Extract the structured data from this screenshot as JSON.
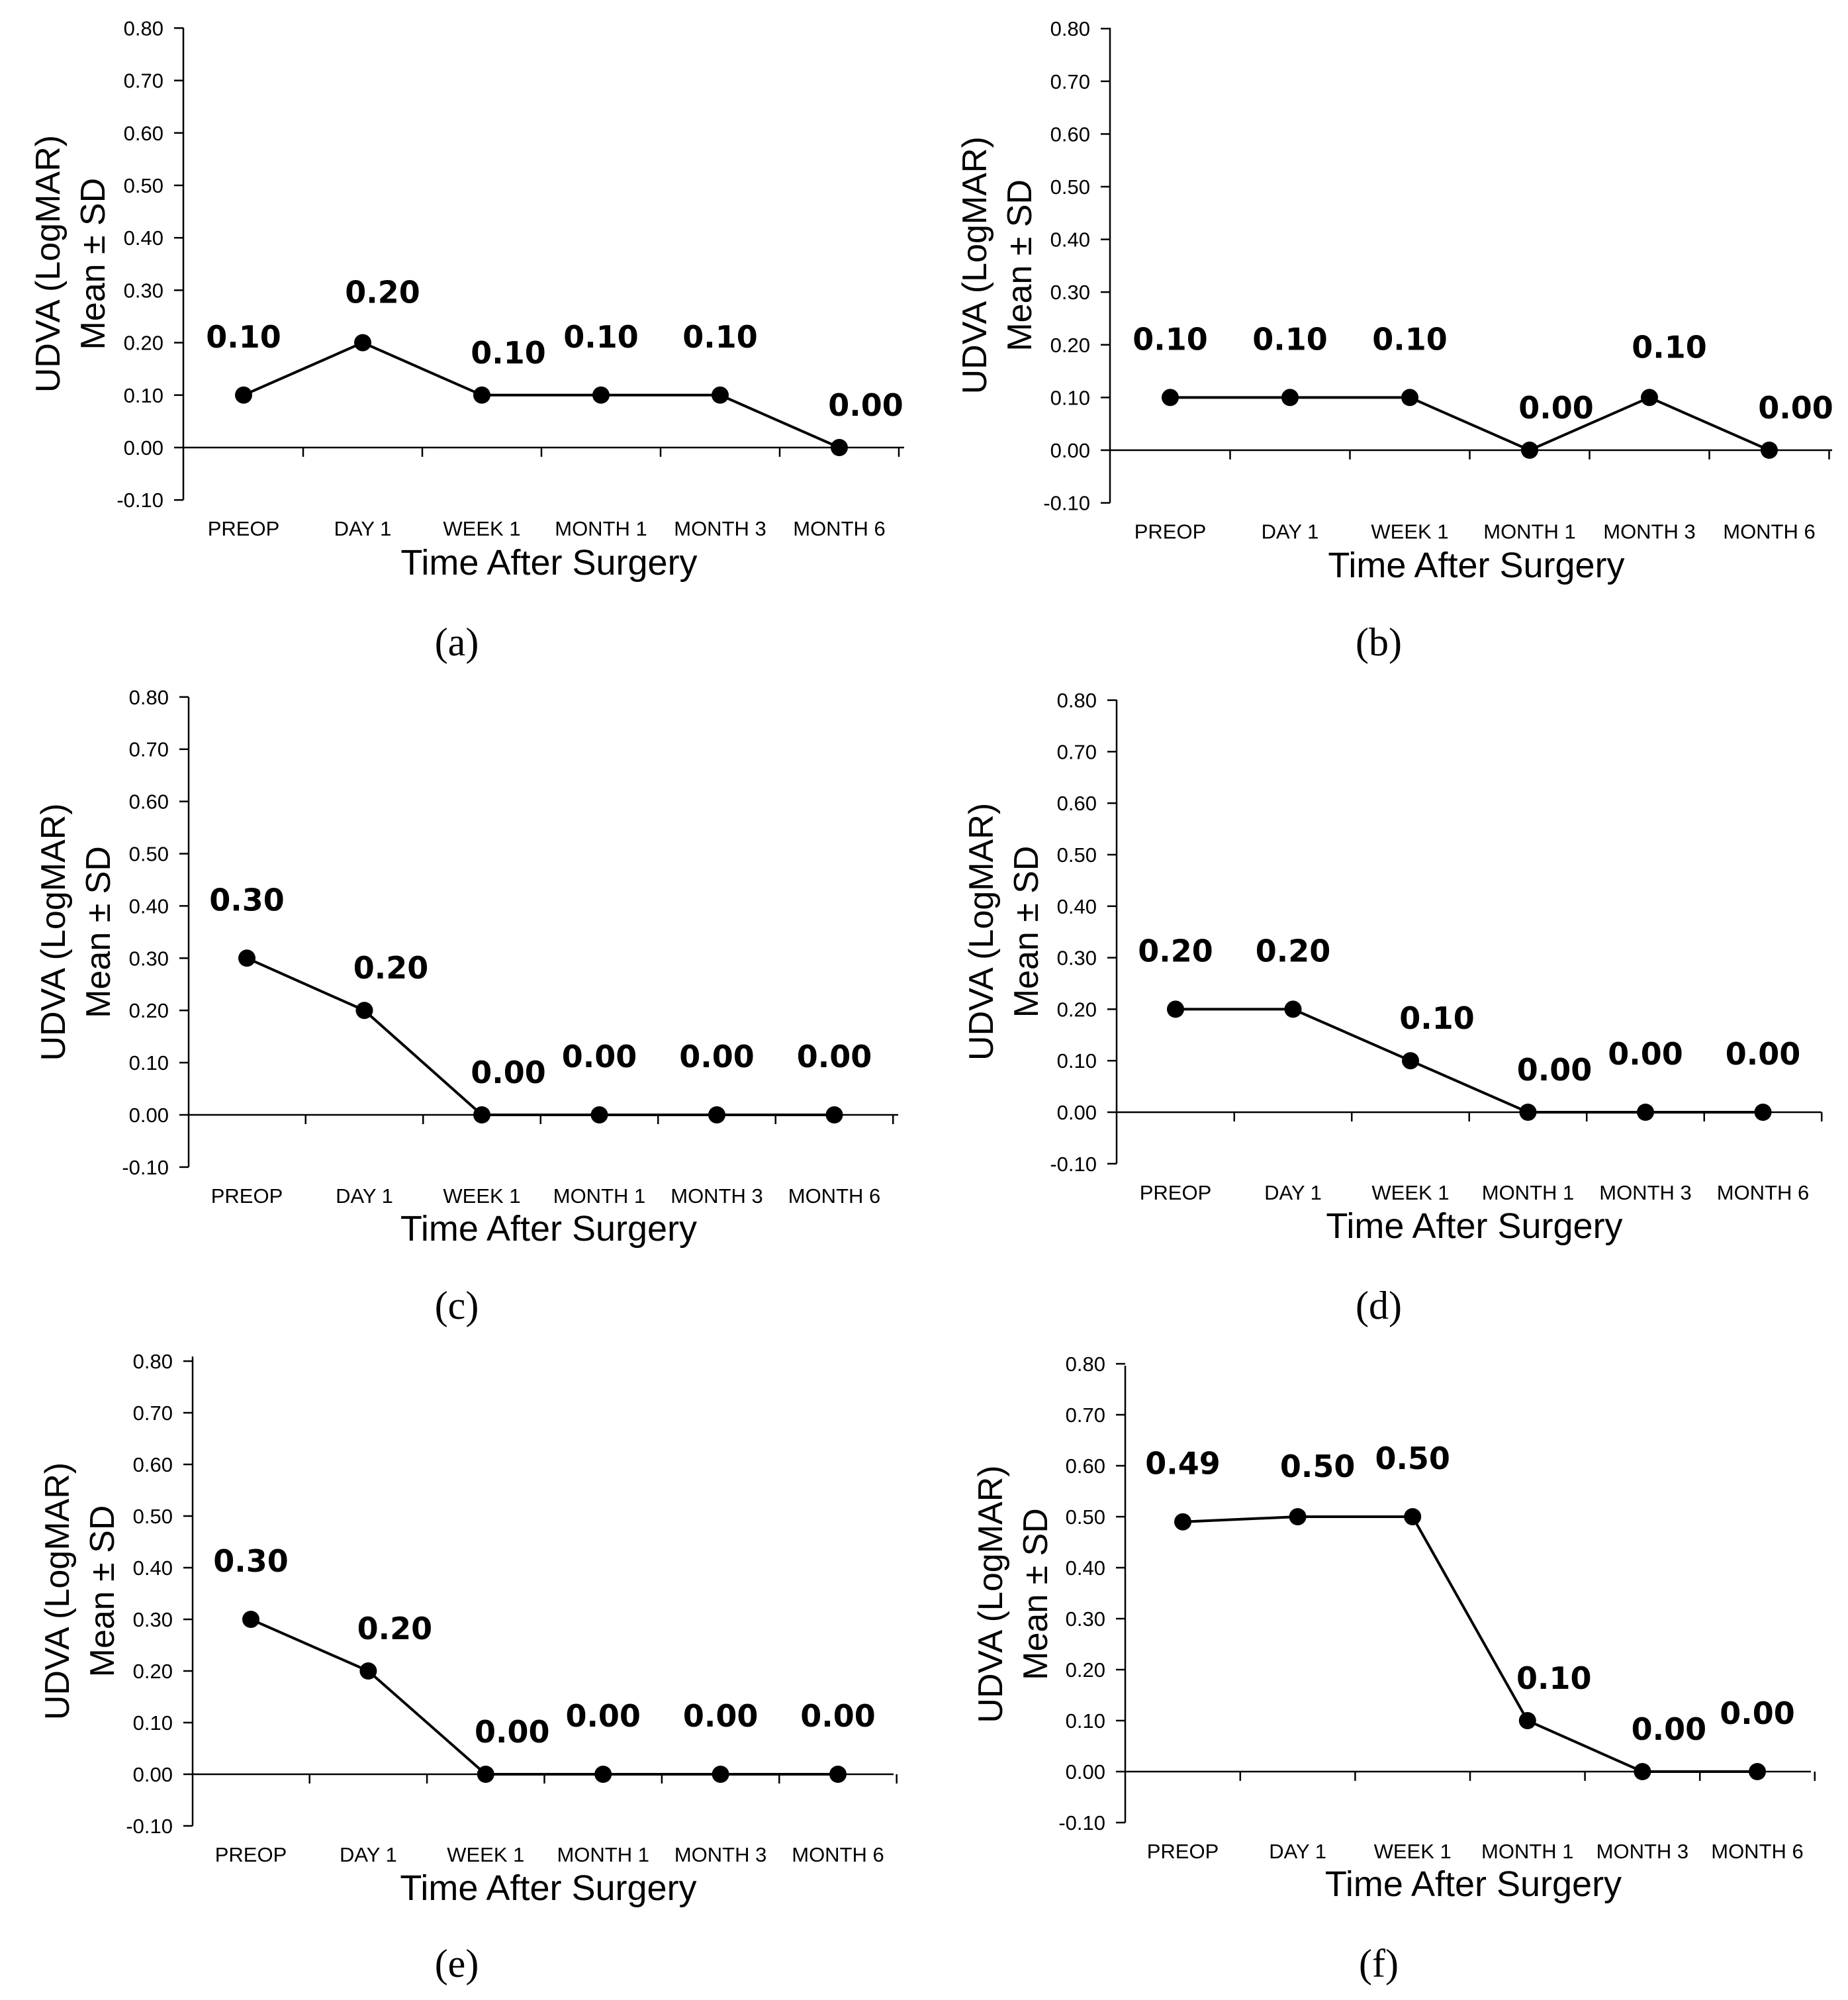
{
  "chart_data": [
    {
      "panel": "a",
      "type": "line",
      "categories": [
        "PREOP",
        "DAY 1",
        "WEEK 1",
        "MONTH 1",
        "MONTH 3",
        "MONTH 6"
      ],
      "values": [
        0.1,
        0.2,
        0.1,
        0.1,
        0.1,
        0.0
      ],
      "data_labels": [
        "0.10",
        "0.20",
        "0.10",
        "0.10",
        "0.10",
        "0.00"
      ],
      "xlabel": "Time After Surgery",
      "ylabel": [
        "UDVA (LogMAR)",
        "Mean ± SD"
      ],
      "ylim": [
        -0.1,
        0.8
      ],
      "yticks": [
        "0.80",
        "0.70",
        "0.60",
        "0.50",
        "0.40",
        "0.30",
        "0.20",
        "0.10",
        "0.00",
        "-0.10"
      ],
      "grid": false
    },
    {
      "panel": "b",
      "type": "line",
      "categories": [
        "PREOP",
        "DAY 1",
        "WEEK 1",
        "MONTH 1",
        "MONTH 3",
        "MONTH 6"
      ],
      "values": [
        0.1,
        0.1,
        0.1,
        0.0,
        0.1,
        0.0
      ],
      "data_labels": [
        "0.10",
        "0.10",
        "0.10",
        "0.00",
        "0.10",
        "0.00"
      ],
      "xlabel": "Time After Surgery",
      "ylabel": [
        "UDVA (LogMAR)",
        "Mean ± SD"
      ],
      "ylim": [
        -0.1,
        0.8
      ],
      "yticks": [
        "0.80",
        "0.70",
        "0.60",
        "0.50",
        "0.40",
        "0.30",
        "0.20",
        "0.10",
        "0.00",
        "-0.10"
      ],
      "grid": false
    },
    {
      "panel": "c",
      "type": "line",
      "categories": [
        "PREOP",
        "DAY 1",
        "WEEK 1",
        "MONTH 1",
        "MONTH 3",
        "MONTH 6"
      ],
      "values": [
        0.3,
        0.2,
        0.0,
        0.0,
        0.0,
        0.0
      ],
      "data_labels": [
        "0.30",
        "0.20",
        "0.00",
        "0.00",
        "0.00",
        "0.00"
      ],
      "xlabel": "Time After Surgery",
      "ylabel": [
        "UDVA (LogMAR)",
        "Mean ± SD"
      ],
      "ylim": [
        -0.1,
        0.8
      ],
      "yticks": [
        "0.80",
        "0.70",
        "0.60",
        "0.50",
        "0.40",
        "0.30",
        "0.20",
        "0.10",
        "0.00",
        "-0.10"
      ],
      "grid": false
    },
    {
      "panel": "d",
      "type": "line",
      "categories": [
        "PREOP",
        "DAY 1",
        "WEEK 1",
        "MONTH 1",
        "MONTH 3",
        "MONTH 6"
      ],
      "values": [
        0.2,
        0.2,
        0.1,
        0.0,
        0.0,
        0.0
      ],
      "data_labels": [
        "0.20",
        "0.20",
        "0.10",
        "0.00",
        "0.00",
        "0.00"
      ],
      "xlabel": "Time After Surgery",
      "ylabel": [
        "UDVA (LogMAR)",
        "Mean ± SD"
      ],
      "ylim": [
        -0.1,
        0.8
      ],
      "yticks": [
        "0.80",
        "0.70",
        "0.60",
        "0.50",
        "0.40",
        "0.30",
        "0.20",
        "0.10",
        "0.00",
        "-0.10"
      ],
      "grid": false
    },
    {
      "panel": "e",
      "type": "line",
      "categories": [
        "PREOP",
        "DAY 1",
        "WEEK 1",
        "MONTH 1",
        "MONTH 3",
        "MONTH 6"
      ],
      "values": [
        0.3,
        0.2,
        0.0,
        0.0,
        0.0,
        0.0
      ],
      "data_labels": [
        "0.30",
        "0.20",
        "0.00",
        "0.00",
        "0.00",
        "0.00"
      ],
      "xlabel": "Time After Surgery",
      "ylabel": [
        "UDVA (LogMAR)",
        "Mean ± SD"
      ],
      "ylim": [
        -0.1,
        0.8
      ],
      "yticks": [
        "0.80",
        "0.70",
        "0.60",
        "0.50",
        "0.40",
        "0.30",
        "0.20",
        "0.10",
        "0.00",
        "-0.10"
      ],
      "grid": false
    },
    {
      "panel": "f",
      "type": "line",
      "categories": [
        "PREOP",
        "DAY 1",
        "WEEK 1",
        "MONTH 1",
        "MONTH 3",
        "MONTH 6"
      ],
      "values": [
        0.49,
        0.5,
        0.5,
        0.1,
        0.0,
        0.0
      ],
      "data_labels": [
        "0.49",
        "0.50",
        "0.50",
        "0.10",
        "0.00",
        "0.00"
      ],
      "xlabel": "Time After Surgery",
      "ylabel": [
        "UDVA (LogMAR)",
        "Mean ± SD"
      ],
      "ylim": [
        -0.1,
        0.8
      ],
      "yticks": [
        "0.80",
        "0.70",
        "0.60",
        "0.50",
        "0.40",
        "0.30",
        "0.20",
        "0.10",
        "0.00",
        "-0.10"
      ],
      "grid": false
    }
  ],
  "panel_captions": [
    "(a)",
    "(b)",
    "(c)",
    "(d)",
    "(e)",
    "(f)"
  ],
  "colors": {
    "line": "#000000",
    "marker": "#000000",
    "axis": "#000000",
    "background": "#ffffff"
  }
}
